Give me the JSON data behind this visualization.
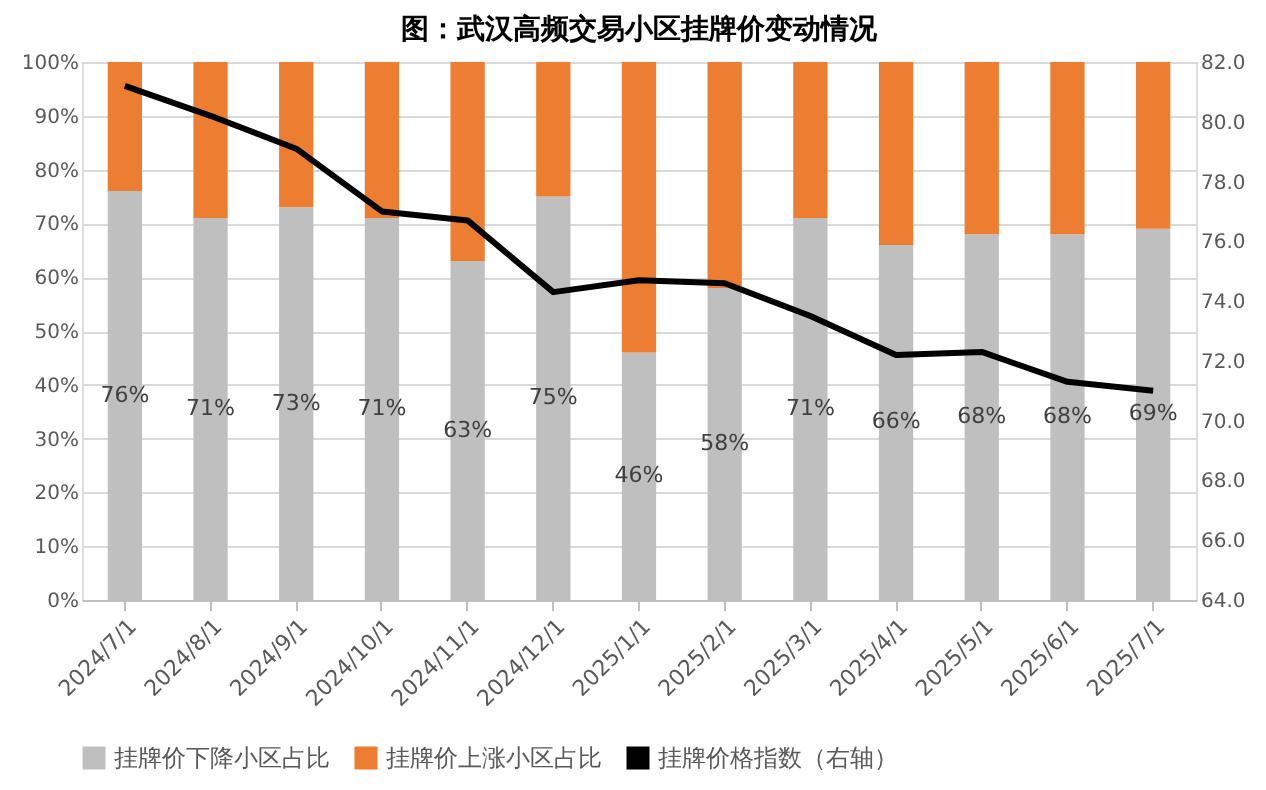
{
  "chart_data": {
    "type": "bar",
    "title": "图：武汉高频交易小区挂牌价变动情况",
    "stacked": true,
    "categories": [
      "2024/7/1",
      "2024/8/1",
      "2024/9/1",
      "2024/10/1",
      "2024/11/1",
      "2024/12/1",
      "2025/1/1",
      "2025/2/1",
      "2025/3/1",
      "2025/4/1",
      "2025/5/1",
      "2025/6/1",
      "2025/7/1"
    ],
    "series": [
      {
        "name": "挂牌价下降小区占比",
        "color": "#bfbfbf",
        "values": [
          76,
          71,
          73,
          71,
          63,
          75,
          46,
          58,
          71,
          66,
          68,
          68,
          69
        ],
        "value_labels": [
          "76%",
          "71%",
          "73%",
          "71%",
          "63%",
          "75%",
          "46%",
          "58%",
          "71%",
          "66%",
          "68%",
          "68%",
          "69%"
        ]
      },
      {
        "name": "挂牌价上涨小区占比",
        "color": "#ed7d31",
        "values": [
          24,
          29,
          27,
          29,
          37,
          25,
          54,
          42,
          29,
          34,
          32,
          32,
          31
        ]
      },
      {
        "name": "挂牌价格指数（右轴）",
        "type": "line",
        "axis": "y2",
        "color": "#000000",
        "values": [
          81.2,
          80.2,
          79.1,
          77.0,
          76.7,
          74.3,
          74.7,
          74.6,
          73.5,
          72.2,
          72.3,
          71.3,
          71.0
        ]
      }
    ],
    "ylim": [
      0,
      100
    ],
    "yticks": [
      {
        "value": 0,
        "label": "0%"
      },
      {
        "value": 10,
        "label": "10%"
      },
      {
        "value": 20,
        "label": "20%"
      },
      {
        "value": 30,
        "label": "30%"
      },
      {
        "value": 40,
        "label": "40%"
      },
      {
        "value": 50,
        "label": "50%"
      },
      {
        "value": 60,
        "label": "60%"
      },
      {
        "value": 70,
        "label": "70%"
      },
      {
        "value": 80,
        "label": "80%"
      },
      {
        "value": 90,
        "label": "90%"
      },
      {
        "value": 100,
        "label": "100%"
      }
    ],
    "y2lim": [
      64,
      82
    ],
    "y2ticks": [
      {
        "value": 64,
        "label": "64.0"
      },
      {
        "value": 66,
        "label": "66.0"
      },
      {
        "value": 68,
        "label": "68.0"
      },
      {
        "value": 70,
        "label": "70.0"
      },
      {
        "value": 72,
        "label": "72.0"
      },
      {
        "value": 74,
        "label": "74.0"
      },
      {
        "value": 76,
        "label": "76.0"
      },
      {
        "value": 78,
        "label": "78.0"
      },
      {
        "value": 80,
        "label": "80.0"
      },
      {
        "value": 82,
        "label": "82.0"
      }
    ],
    "grid": "y",
    "legend": "bottom"
  }
}
